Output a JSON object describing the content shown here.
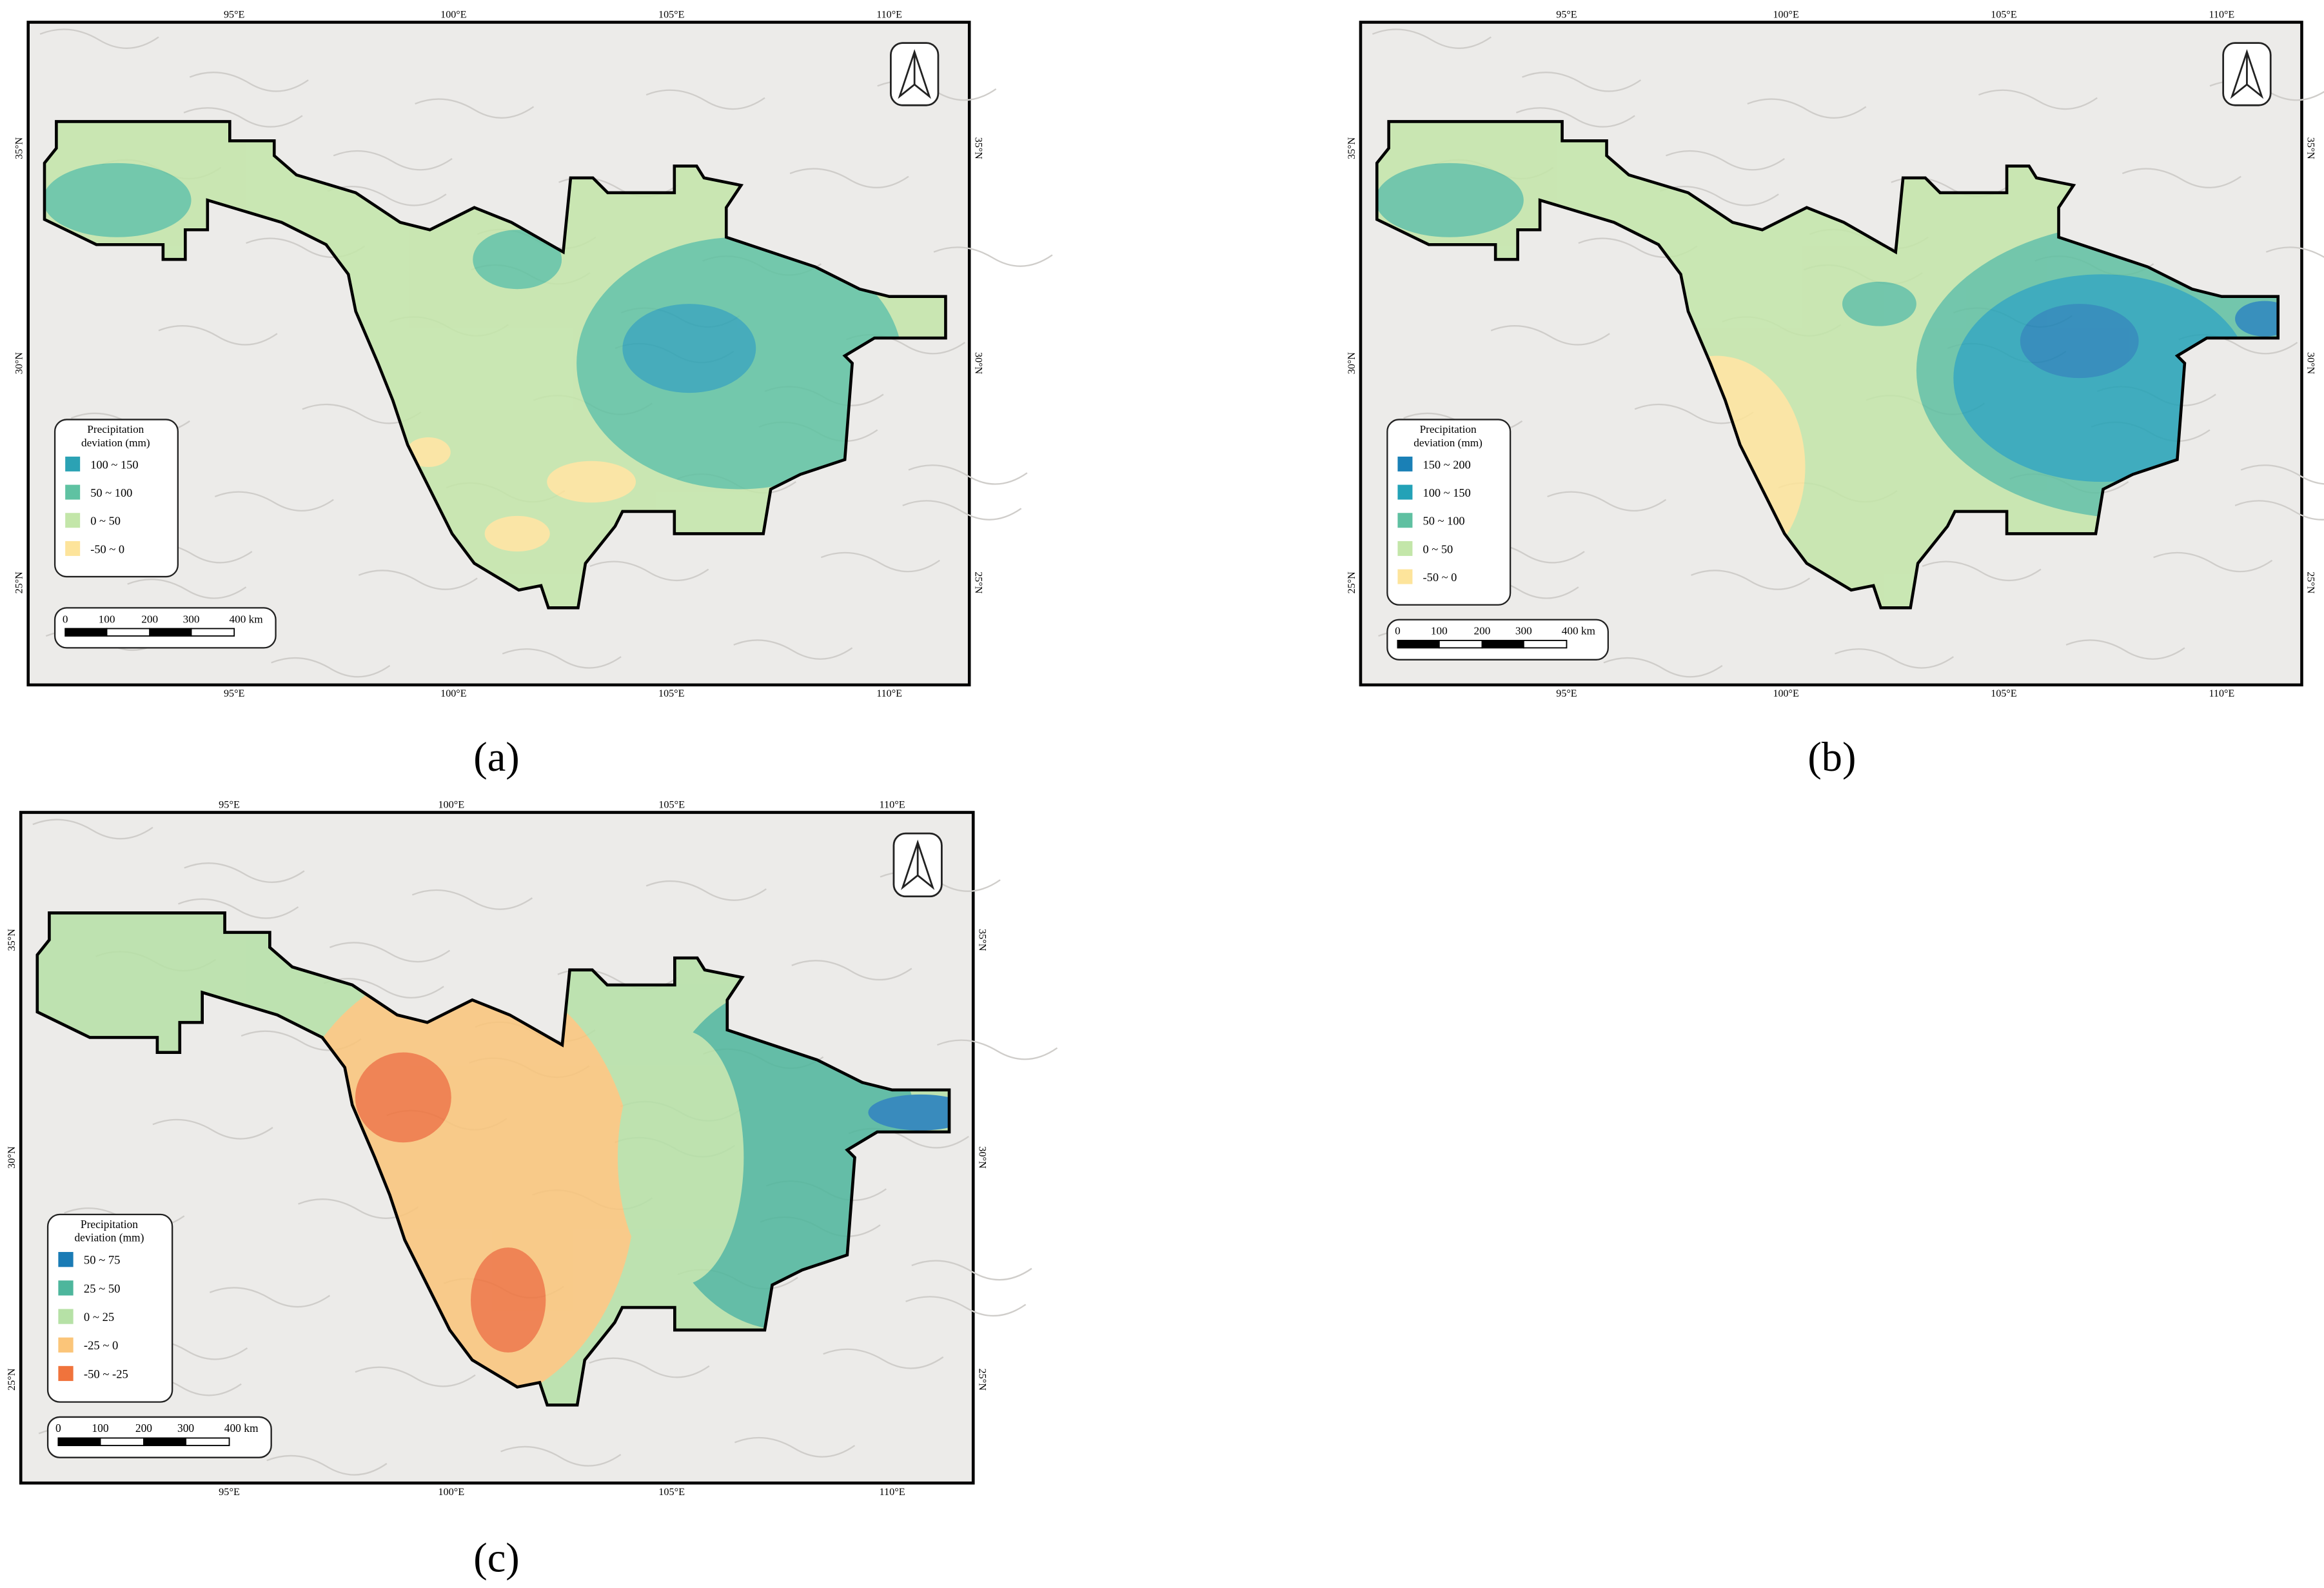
{
  "axes": {
    "top": [
      "95°E",
      "100°E",
      "105°E",
      "110°E"
    ],
    "side": [
      "35°N",
      "30°N",
      "25°N"
    ]
  },
  "scale": [
    "0",
    "100",
    "200",
    "300",
    "400 km"
  ],
  "panels": [
    {
      "label": "(a)",
      "legend": {
        "title": [
          "Precipitation",
          "deviation (mm)"
        ],
        "items": [
          {
            "label": "100 ~ 150",
            "color": "#2ba2b4"
          },
          {
            "label": "50 ~ 100",
            "color": "#5fc2a2"
          },
          {
            "label": "0 ~ 50",
            "color": "#c3e6a9"
          },
          {
            "label": "-50 ~ 0",
            "color": "#fde49b"
          }
        ]
      }
    },
    {
      "label": "(b)",
      "legend": {
        "title": [
          "Precipitation",
          "deviation (mm)"
        ],
        "items": [
          {
            "label": "150 ~ 200",
            "color": "#1a80b6"
          },
          {
            "label": "100 ~ 150",
            "color": "#23a2b7"
          },
          {
            "label": "50 ~ 100",
            "color": "#5fc0a1"
          },
          {
            "label": "0 ~ 50",
            "color": "#c3e6a9"
          },
          {
            "label": "-50 ~ 0",
            "color": "#fde49b"
          }
        ]
      }
    },
    {
      "label": "(c)",
      "legend": {
        "title": [
          "Precipitation",
          "deviation (mm)"
        ],
        "items": [
          {
            "label": "50 ~ 75",
            "color": "#1a7bb5"
          },
          {
            "label": "25 ~ 50",
            "color": "#4db69c"
          },
          {
            "label": "0 ~ 25",
            "color": "#b6e1a6"
          },
          {
            "label": "-25 ~ 0",
            "color": "#fbc579"
          },
          {
            "label": "-50 ~ -25",
            "color": "#f0733c"
          }
        ]
      }
    }
  ]
}
